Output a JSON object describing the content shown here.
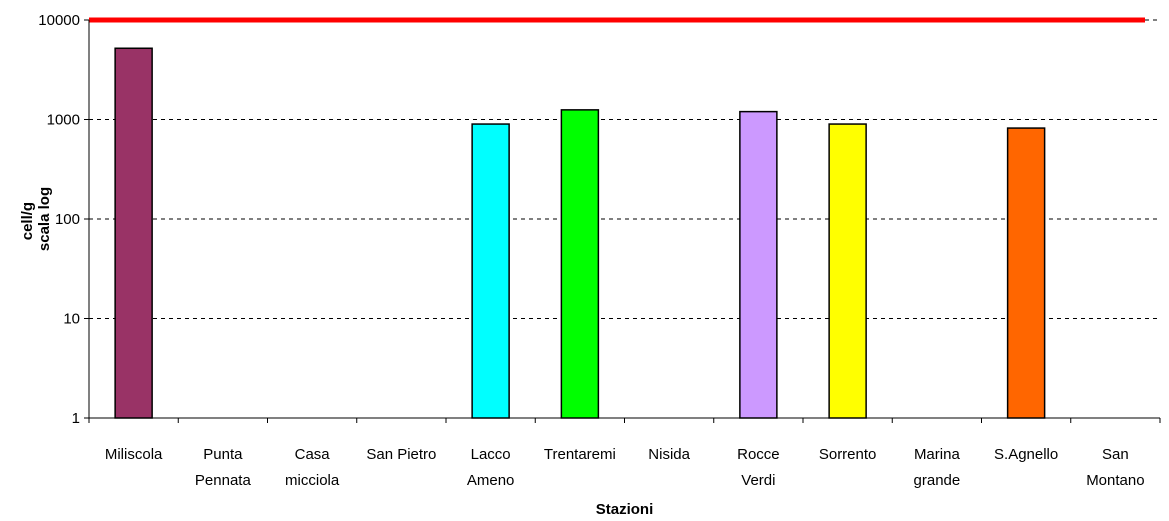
{
  "chart_data": {
    "type": "bar",
    "categories": [
      [
        "Miliscola"
      ],
      [
        "Punta",
        "Pennata"
      ],
      [
        "Casa",
        "micciola"
      ],
      [
        "San Pietro"
      ],
      [
        "Lacco",
        "Ameno"
      ],
      [
        "Trentaremi"
      ],
      [
        "Nisida"
      ],
      [
        "Rocce",
        "Verdi"
      ],
      [
        "Sorrento"
      ],
      [
        "Marina",
        "grande"
      ],
      [
        "S.Agnello"
      ],
      [
        "San",
        "Montano"
      ]
    ],
    "values": [
      5200,
      null,
      null,
      null,
      900,
      1250,
      null,
      1200,
      900,
      null,
      820,
      null
    ],
    "bar_colors": [
      "#993366",
      null,
      null,
      null,
      "#00ffff",
      "#00ff00",
      null,
      "#cc99ff",
      "#ffff00",
      null,
      "#ff6600",
      null
    ],
    "y_scale": "log",
    "ylim": [
      1,
      10000
    ],
    "y_ticks": [
      "1",
      "10",
      "100",
      "1000",
      "10000"
    ],
    "y_tick_values": [
      1,
      10,
      100,
      1000,
      10000
    ],
    "xlabel": "Stazioni",
    "ylabel_lines": [
      "cell/g",
      "scala log"
    ],
    "reference_line": {
      "value": 10000,
      "color": "#ff0000"
    },
    "grid": "dashed-horizontal",
    "legend": "none"
  }
}
